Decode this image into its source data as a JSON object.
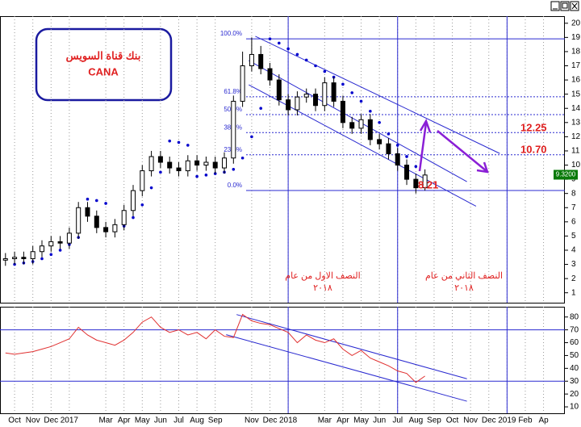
{
  "chart_data": {
    "type": "candlestick",
    "title": "بنك قناة السويس",
    "subtitle": "CANA",
    "x": [
      0.5,
      1,
      1.5,
      2,
      2.5,
      3,
      3.5,
      4,
      4.5,
      5,
      5.5,
      6,
      6.5,
      7,
      7.5,
      8,
      8.5,
      9,
      9.5,
      10,
      10.5,
      11,
      11.5,
      12,
      12.5,
      13,
      13.5,
      14,
      14.5,
      15,
      15.5,
      16,
      16.5,
      17,
      17.5,
      18,
      18.5,
      19,
      19.5,
      20,
      20.5,
      21,
      21.5,
      22,
      22.5,
      23,
      23.5
    ],
    "open": [
      3.3,
      3.4,
      3.5,
      3.4,
      3.9,
      4.3,
      4.6,
      4.5,
      5.2,
      7.0,
      6.4,
      5.6,
      5.3,
      5.8,
      6.8,
      8.2,
      9.6,
      10.6,
      10.2,
      9.8,
      9.6,
      10.3,
      10.0,
      10.2,
      9.8,
      10.5,
      14.5,
      17.0,
      17.8,
      16.8,
      16.0,
      14.6,
      13.9,
      14.8,
      15.0,
      14.2,
      15.8,
      14.5,
      13.0,
      12.6,
      13.2,
      11.8,
      11.5,
      10.8,
      10.0,
      9.0,
      8.4
    ],
    "high": [
      3.8,
      3.9,
      3.9,
      4.3,
      4.7,
      5.0,
      5.0,
      5.6,
      7.4,
      7.4,
      6.8,
      6.0,
      6.2,
      7.2,
      8.6,
      10.0,
      11.0,
      11.0,
      10.6,
      10.2,
      10.7,
      10.7,
      10.6,
      10.6,
      10.9,
      14.9,
      18.0,
      19.0,
      18.4,
      17.2,
      16.4,
      15.0,
      15.2,
      15.4,
      15.4,
      16.2,
      16.2,
      14.9,
      13.4,
      13.6,
      13.6,
      12.2,
      11.9,
      11.2,
      10.4,
      9.4,
      9.7
    ],
    "low": [
      2.9,
      3.0,
      3.0,
      3.0,
      3.5,
      3.9,
      4.1,
      4.1,
      4.8,
      6.0,
      5.2,
      4.9,
      4.9,
      5.4,
      6.4,
      7.8,
      9.2,
      9.8,
      9.4,
      9.2,
      9.2,
      9.6,
      9.6,
      9.4,
      9.4,
      10.1,
      14.1,
      16.6,
      16.4,
      15.6,
      14.2,
      13.5,
      13.5,
      14.4,
      13.8,
      13.8,
      14.1,
      12.6,
      12.2,
      12.2,
      11.4,
      11.1,
      10.4,
      9.6,
      8.6,
      8.0,
      8.2
    ],
    "close": [
      3.4,
      3.5,
      3.4,
      3.9,
      4.3,
      4.6,
      4.5,
      5.2,
      7.0,
      6.4,
      5.6,
      5.3,
      5.8,
      6.8,
      8.2,
      9.6,
      10.6,
      10.2,
      9.8,
      9.6,
      10.3,
      10.0,
      10.2,
      9.8,
      10.5,
      14.5,
      17.0,
      17.8,
      16.8,
      16.0,
      14.6,
      13.9,
      14.8,
      15.0,
      14.2,
      15.8,
      14.5,
      13.0,
      12.6,
      13.2,
      11.8,
      11.5,
      10.8,
      10.0,
      9.0,
      8.4,
      9.3
    ],
    "xlim": [
      0.2,
      31.17
    ],
    "xticks": [
      {
        "value": 1,
        "label": "Oct"
      },
      {
        "value": 2,
        "label": "Nov"
      },
      {
        "value": 3,
        "label": "Dec"
      },
      {
        "value": 4,
        "label": "2017"
      },
      {
        "value": 6,
        "label": "Mar"
      },
      {
        "value": 7,
        "label": "Apr"
      },
      {
        "value": 8,
        "label": "May"
      },
      {
        "value": 9,
        "label": "Jun"
      },
      {
        "value": 10,
        "label": "Jul"
      },
      {
        "value": 11,
        "label": "Aug"
      },
      {
        "value": 12,
        "label": "Sep"
      },
      {
        "value": 14,
        "label": "Nov"
      },
      {
        "value": 15,
        "label": "Dec"
      },
      {
        "value": 16,
        "label": "2018"
      },
      {
        "value": 18,
        "label": "Mar"
      },
      {
        "value": 19,
        "label": "Apr"
      },
      {
        "value": 20,
        "label": "May"
      },
      {
        "value": 21,
        "label": "Jun"
      },
      {
        "value": 22,
        "label": "Jul"
      },
      {
        "value": 23,
        "label": "Aug"
      },
      {
        "value": 24,
        "label": "Sep"
      },
      {
        "value": 25,
        "label": "Oct"
      },
      {
        "value": 26,
        "label": "Nov"
      },
      {
        "value": 27,
        "label": "Dec"
      },
      {
        "value": 28,
        "label": "2019"
      },
      {
        "value": 29,
        "label": "Feb"
      },
      {
        "value": 30,
        "label": "Ap"
      }
    ],
    "ylim": [
      0.3,
      20.5
    ],
    "yticks": [
      1,
      2,
      3,
      4,
      5,
      6,
      7,
      8,
      9,
      10,
      11,
      12,
      13,
      14,
      15,
      16,
      17,
      18,
      19,
      20
    ],
    "up_color": "#ffffff",
    "down_color": "#000000",
    "sar": {
      "color": "#0000cc",
      "x": [
        1,
        1.5,
        2,
        2.5,
        3,
        3.5,
        4,
        4.5,
        5,
        5.5,
        6,
        6.5,
        7,
        7.5,
        8,
        8.5,
        9,
        9.5,
        10,
        10.5,
        11,
        11.5,
        12,
        12.5,
        13,
        13.5,
        14,
        14.5,
        15,
        15.5,
        16,
        16.5,
        17,
        17.5,
        18,
        18.5,
        19,
        19.5,
        20,
        20.5,
        21,
        21.5,
        22,
        22.5,
        23
      ],
      "values": [
        3.0,
        3.1,
        3.2,
        3.4,
        3.7,
        4.0,
        4.4,
        4.9,
        7.6,
        7.5,
        7.3,
        5.4,
        5.7,
        6.3,
        7.2,
        8.4,
        9.5,
        11.7,
        11.6,
        11.4,
        9.2,
        9.3,
        9.4,
        9.5,
        9.7,
        10.5,
        12.0,
        14.0,
        18.9,
        18.6,
        18.2,
        17.8,
        17.4,
        17.0,
        16.6,
        16.2,
        15.7,
        15.1,
        14.5,
        13.8,
        13.0,
        12.2,
        11.4,
        10.6,
        9.9
      ]
    },
    "trendlines": [
      {
        "x": [
          14.2,
          27.6
        ],
        "values": [
          19.08,
          10.82
        ]
      },
      {
        "x": [
          13.84,
          25.8
        ],
        "values": [
          17.37,
          8.83
        ]
      },
      {
        "x": [
          13.84,
          26.3
        ],
        "values": [
          15.66,
          7.1
        ]
      }
    ],
    "fib": {
      "labels": [
        "100.0%",
        "61.8%",
        "50.0%",
        "38.2%",
        "23.6%",
        "0.0%"
      ],
      "values": [
        18.9,
        14.82,
        13.56,
        12.29,
        10.73,
        8.21
      ]
    },
    "price_labels": [
      {
        "value": 12.25,
        "label": "12.25"
      },
      {
        "value": 10.7,
        "label": "10.70"
      },
      {
        "value": 8.21,
        "label": "8.21"
      }
    ],
    "last_price": {
      "value": 9.32,
      "label": "9.3200"
    },
    "dividers": [
      16,
      22,
      28
    ],
    "annotations": [
      {
        "lines": [
          "النصف الاول من عام",
          "٢٠١٨"
        ]
      },
      {
        "lines": [
          "النصف الثاني من عام",
          "٢٠١٨"
        ]
      }
    ],
    "rsi": {
      "color": "#e03030",
      "values": [
        52,
        51,
        52,
        53,
        55,
        57,
        60,
        63,
        72,
        66,
        62,
        60,
        58,
        62,
        68,
        76,
        80,
        72,
        68,
        70,
        66,
        68,
        63,
        70,
        65,
        64,
        82,
        77,
        75,
        74,
        71,
        68,
        60,
        66,
        62,
        60,
        63,
        55,
        50,
        54,
        48,
        45,
        42,
        38,
        36,
        29,
        34
      ],
      "ylim": [
        5,
        88
      ],
      "yticks": [
        10,
        20,
        30,
        40,
        50,
        60,
        70,
        80
      ],
      "levels": [
        70,
        30
      ],
      "trendlines": [
        {
          "x": [
            13.17,
            25.8
          ],
          "values": [
            81.9,
            31.9
          ]
        },
        {
          "x": [
            12.6,
            25.8
          ],
          "values": [
            66.25,
            14.4
          ]
        }
      ]
    }
  }
}
